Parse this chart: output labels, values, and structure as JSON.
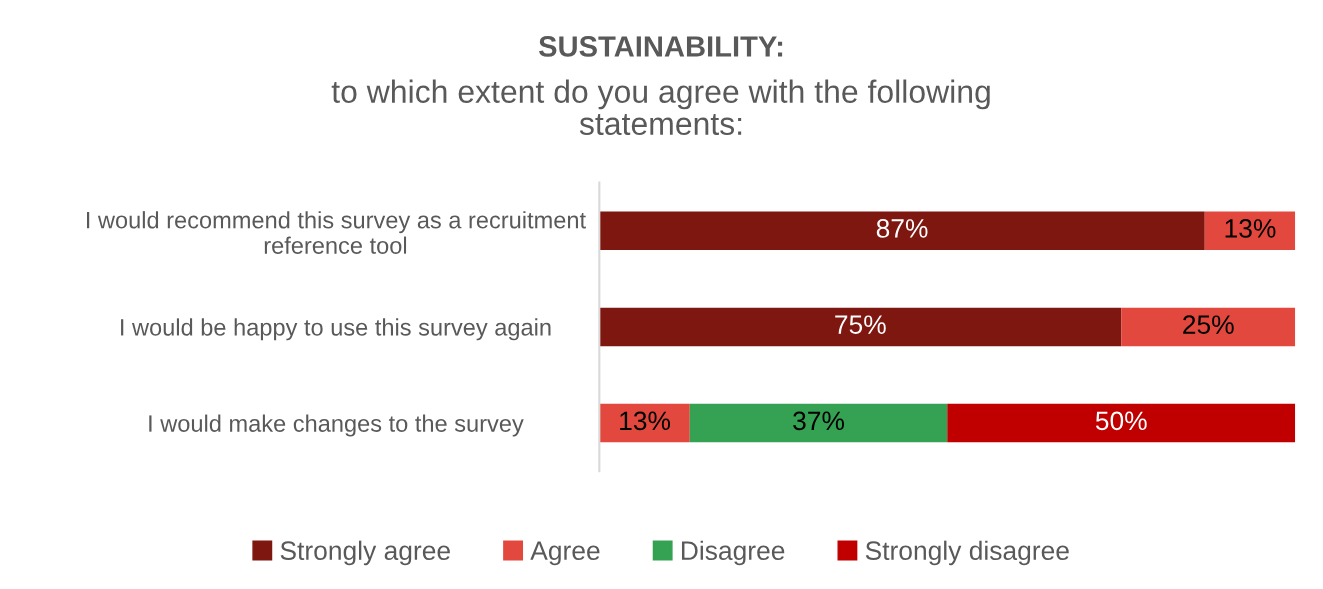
{
  "chart_data": {
    "type": "bar",
    "orientation": "horizontal",
    "stacked": true,
    "title": "SUSTAINABILITY:",
    "subtitle": "to which extent do you agree with the following statements:",
    "categories": [
      "I would recommend this survey as a recruitment reference tool",
      "I would be happy to use this survey again",
      "I would make changes to the survey"
    ],
    "series": [
      {
        "name": "Strongly agree",
        "color": "#7f1711",
        "values": [
          87,
          75,
          0
        ],
        "value_labels": [
          "87%",
          "75%",
          null
        ]
      },
      {
        "name": "Agree",
        "color": "#e3483e",
        "values": [
          13,
          25,
          13
        ],
        "value_labels": [
          "13%",
          "25%",
          "13%"
        ]
      },
      {
        "name": "Disagree",
        "color": "#35a153",
        "values": [
          0,
          0,
          37
        ],
        "value_labels": [
          null,
          null,
          "37%"
        ]
      },
      {
        "name": "Strongly disagree",
        "color": "#c00000",
        "values": [
          0,
          0,
          50
        ],
        "value_labels": [
          null,
          null,
          "50%"
        ]
      }
    ],
    "xlim": [
      0,
      100
    ],
    "tick_labels": "y",
    "grid": false,
    "legend": "bottom"
  }
}
